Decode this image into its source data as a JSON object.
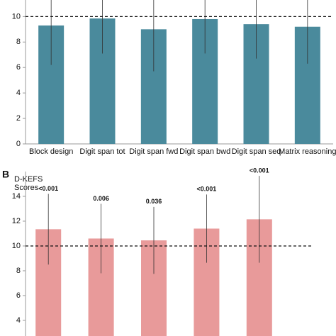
{
  "chart_data": [
    {
      "type": "bar",
      "color": "#4a8a9c",
      "categories": [
        "Block design",
        "Digit span tot",
        "Digit span fwd",
        "Digit span bwd",
        "Digit span seq",
        "Matrix reasoning"
      ],
      "values": [
        9.3,
        9.85,
        9.0,
        9.8,
        9.4,
        9.2
      ],
      "errors": [
        3.1,
        2.75,
        3.3,
        2.7,
        2.7,
        2.9
      ],
      "reference_line": 10,
      "ylim": [
        0,
        11.3
      ],
      "yticks": [
        0,
        2,
        4,
        6,
        8,
        10
      ]
    },
    {
      "type": "bar",
      "color": "#e89a9a",
      "panel_label": "B",
      "ylabel_lines": [
        "D-KEFS",
        "Scores"
      ],
      "categories": [
        null,
        null,
        null,
        null,
        null
      ],
      "values": [
        11.35,
        10.6,
        10.45,
        11.4,
        12.15
      ],
      "errors": [
        2.85,
        2.8,
        2.7,
        2.75,
        3.5
      ],
      "annotations": [
        "<0.001",
        "0.006",
        "0.036",
        "<0.001",
        "<0.001"
      ],
      "reference_line": 10,
      "ylim": [
        2.74,
        16
      ],
      "yticks": [
        4,
        6,
        8,
        10,
        12,
        14
      ]
    }
  ]
}
